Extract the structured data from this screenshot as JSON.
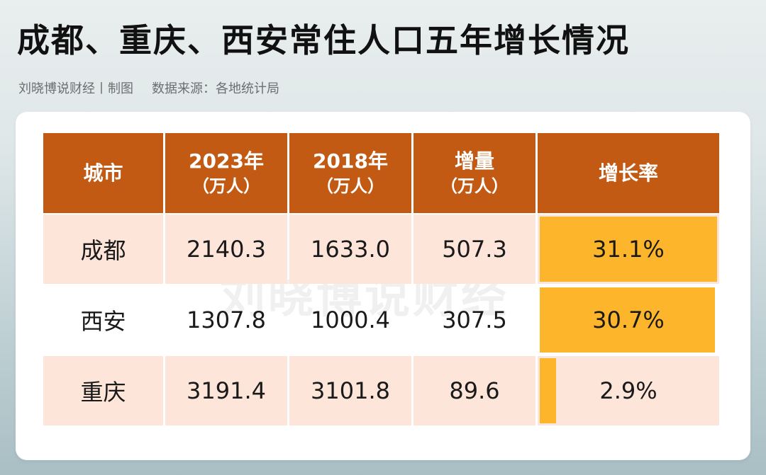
{
  "header": {
    "title": "成都、重庆、西安常住人口五年增长情况",
    "credit": "刘晓博说财经丨制图",
    "source": "数据来源：各地统计局"
  },
  "watermark": "刘晓博说财经",
  "table": {
    "columns": [
      {
        "label": "城市",
        "unit": ""
      },
      {
        "label": "2023年",
        "unit": "（万人）"
      },
      {
        "label": "2018年",
        "unit": "（万人）"
      },
      {
        "label": "增量",
        "unit": "（万人）"
      },
      {
        "label": "增长率",
        "unit": ""
      }
    ],
    "rows": [
      {
        "city": "成都",
        "pop_2023": "2140.3",
        "pop_2018": "1633.0",
        "increase": "507.3",
        "rate": "31.1%",
        "rate_value": 31.1
      },
      {
        "city": "西安",
        "pop_2023": "1307.8",
        "pop_2018": "1000.4",
        "increase": "307.5",
        "rate": "30.7%",
        "rate_value": 30.7
      },
      {
        "city": "重庆",
        "pop_2023": "3191.4",
        "pop_2018": "3101.8",
        "increase": "89.6",
        "rate": "2.9%",
        "rate_value": 2.9
      }
    ]
  },
  "colors": {
    "header_bg": "#c25a13",
    "row_shade": "#fde5d9",
    "bar": "#fdb52b"
  },
  "chart_data": {
    "type": "table",
    "title": "成都、重庆、西安常住人口五年增长情况",
    "columns": [
      "城市",
      "2023年（万人）",
      "2018年（万人）",
      "增量（万人）",
      "增长率"
    ],
    "categories": [
      "成都",
      "西安",
      "重庆"
    ],
    "series": [
      {
        "name": "2023年（万人）",
        "values": [
          2140.3,
          1307.8,
          3191.4
        ]
      },
      {
        "name": "2018年（万人）",
        "values": [
          1633.0,
          1000.4,
          3101.8
        ]
      },
      {
        "name": "增量（万人）",
        "values": [
          507.3,
          307.5,
          89.6
        ]
      },
      {
        "name": "增长率",
        "values": [
          31.1,
          30.7,
          2.9
        ]
      }
    ],
    "bar_scale_max": 31.1
  }
}
